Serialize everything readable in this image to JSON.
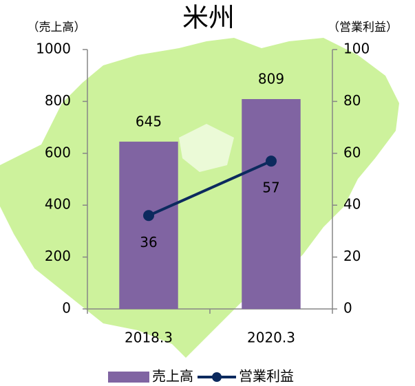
{
  "chart_data": {
    "type": "combo",
    "title": "米州",
    "ylabel": "（売上高）",
    "y2label": "（営業利益）",
    "categories": [
      "2018.3",
      "2020.3"
    ],
    "series": [
      {
        "name": "売上高",
        "type": "bar",
        "color": "#8064a2",
        "values": [
          645,
          809
        ],
        "axis": "y"
      },
      {
        "name": "営業利益",
        "type": "line",
        "color": "#0c2a5e",
        "values": [
          36,
          57
        ],
        "axis": "y2"
      }
    ],
    "ylim": [
      0,
      1000
    ],
    "yticks": [
      0,
      200,
      400,
      600,
      800,
      1000
    ],
    "y2lim": [
      0,
      100
    ],
    "y2ticks": [
      0,
      20,
      40,
      60,
      80,
      100
    ],
    "legend": "bottom"
  }
}
